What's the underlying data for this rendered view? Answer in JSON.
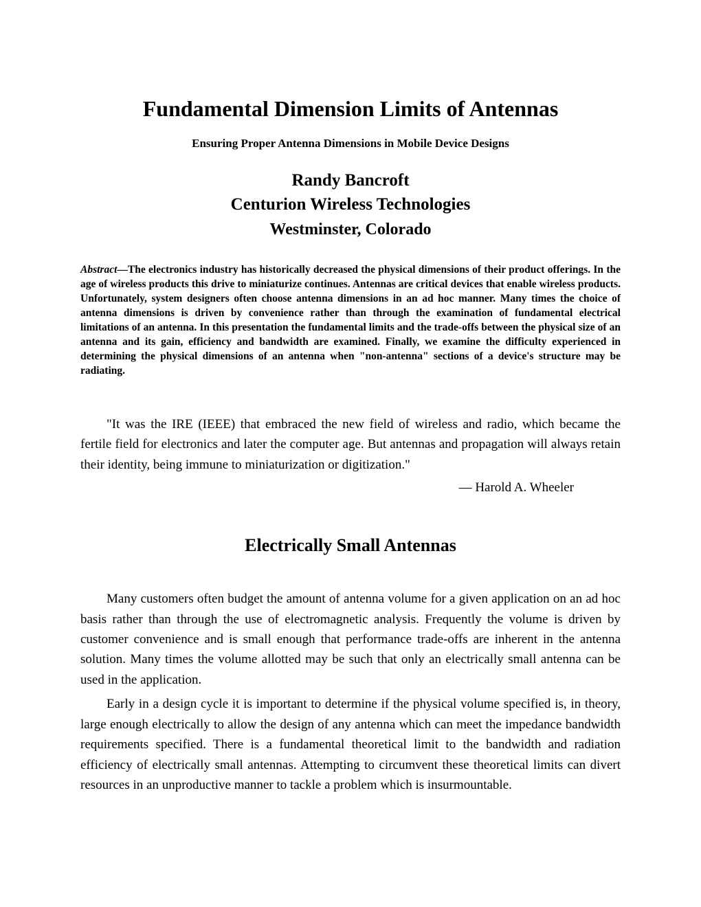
{
  "title": "Fundamental Dimension Limits of Antennas",
  "subtitle": "Ensuring Proper Antenna Dimensions in Mobile Device Designs",
  "author": "Randy Bancroft",
  "affiliation": "Centurion Wireless Technologies",
  "location": "Westminster, Colorado",
  "abstract_label": "Abstract",
  "abstract_text": "—The electronics industry has historically decreased the physical dimensions of their product offerings. In the age of wireless products this drive to miniaturize continues. Antennas are critical devices that enable wireless products. Unfortunately, system designers often choose antenna dimensions in an ad hoc manner. Many times the choice of antenna dimensions is driven by convenience rather than through the examination of fundamental electrical limitations of an antenna. In this presentation the fundamental limits and the trade-offs between the physical size of an antenna and its gain, efficiency and bandwidth are examined. Finally, we examine the difficulty experienced in determining the physical dimensions of an antenna when \"non-antenna\" sections of a device's structure may be radiating.",
  "quote_text": "\"It was the IRE (IEEE) that embraced the new field of wireless and radio, which became the fertile field for electronics and later the computer age. But antennas and propagation will always retain their identity, being immune to miniaturization or digitization.\"",
  "quote_attribution": "— Harold A. Wheeler",
  "section_heading": "Electrically Small Antennas",
  "paragraph1": "Many customers often budget the amount of antenna volume for a given application on an ad hoc basis rather than through the use of electromagnetic analysis. Frequently the volume is driven by customer convenience and is small enough that performance trade-offs are inherent in the antenna solution. Many times the volume allotted may be such that only an electrically small antenna can be used in the application.",
  "paragraph2": "Early in a design cycle it is important to determine if the physical volume specified is, in theory, large enough electrically to allow the design of any antenna which can meet the impedance bandwidth requirements specified. There is a fundamental theoretical limit to the bandwidth and radiation efficiency of electrically small antennas. Attempting to circumvent these theoretical limits can divert resources in an unproductive manner to tackle a problem which is insurmountable."
}
